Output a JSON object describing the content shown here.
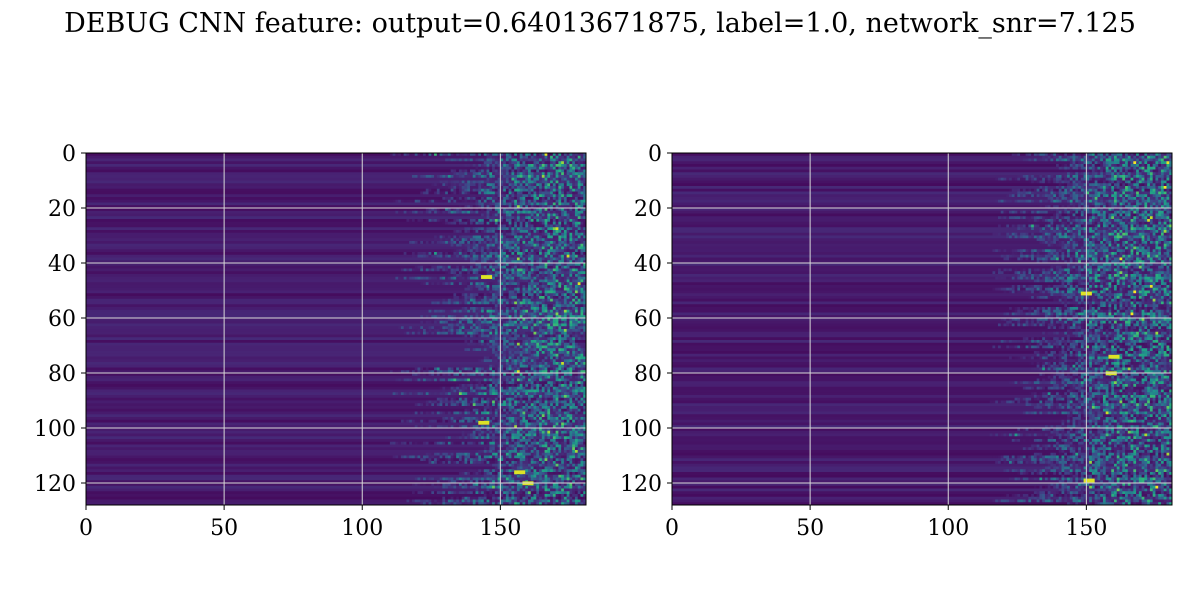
{
  "figure": {
    "title": "DEBUG CNN feature: output=0.64013671875, label=1.0, network_snr=7.125"
  },
  "colors": {
    "background": "#ffffff",
    "grid": "#d8d8d8",
    "axis": "#000000",
    "colormap": "viridis",
    "colormap_low": "#440154",
    "colormap_high": "#fde725"
  },
  "chart_data": [
    {
      "type": "heatmap",
      "colormap": "viridis",
      "grid": true,
      "xlim": [
        0,
        181
      ],
      "ylim": [
        128,
        0
      ],
      "x_ticks": [
        0,
        50,
        100,
        150
      ],
      "y_ticks": [
        0,
        20,
        40,
        60,
        80,
        100,
        120
      ],
      "x_tick_labels": [
        "0",
        "50",
        "100",
        "150"
      ],
      "y_tick_labels": [
        "0",
        "20",
        "40",
        "60",
        "80",
        "100",
        "120"
      ],
      "rows": 128,
      "cols": 181,
      "activation_onset_column_range": [
        110,
        150
      ],
      "hotspots": [
        {
          "x": 144,
          "y": 98
        },
        {
          "x": 157,
          "y": 116
        },
        {
          "x": 145,
          "y": 45
        },
        {
          "x": 160,
          "y": 120
        }
      ]
    },
    {
      "type": "heatmap",
      "colormap": "viridis",
      "grid": true,
      "xlim": [
        0,
        181
      ],
      "ylim": [
        128,
        0
      ],
      "x_ticks": [
        0,
        50,
        100,
        150
      ],
      "y_ticks": [
        0,
        20,
        40,
        60,
        80,
        100,
        120
      ],
      "x_tick_labels": [
        "0",
        "50",
        "100",
        "150"
      ],
      "y_tick_labels": [
        "0",
        "20",
        "40",
        "60",
        "80",
        "100",
        "120"
      ],
      "rows": 128,
      "cols": 181,
      "activation_onset_column_range": [
        115,
        145
      ],
      "hotspots": [
        {
          "x": 160,
          "y": 74
        },
        {
          "x": 151,
          "y": 119
        },
        {
          "x": 150,
          "y": 51
        },
        {
          "x": 159,
          "y": 80
        }
      ]
    }
  ]
}
